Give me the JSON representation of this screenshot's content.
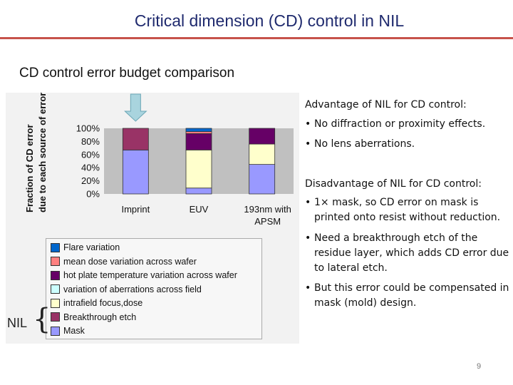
{
  "slide": {
    "title": "Critical dimension (CD) control in NIL",
    "subtitle": "CD control error budget comparison",
    "page_number": "9"
  },
  "colors": {
    "title_text": "#1f2a6e",
    "title_rule": "#c7534b",
    "bar_edge": "#333333"
  },
  "chart_data": {
    "type": "bar",
    "stacked": true,
    "percent": true,
    "ylabel": "Fraction of CD error due to each source of error",
    "yticks": [
      "0%",
      "20%",
      "40%",
      "60%",
      "80%",
      "100%"
    ],
    "ylim": [
      0,
      100
    ],
    "categories": [
      "Imprint",
      "EUV",
      "193nm with APSM"
    ],
    "highlight_arrow_category": "Imprint",
    "grid": false,
    "legend_position": "bottom",
    "series": [
      {
        "name": "Mask",
        "color": "#9999ff",
        "values": [
          67,
          9,
          45
        ]
      },
      {
        "name": "Breakthrough etch",
        "color": "#993366",
        "values": [
          33,
          0,
          0
        ]
      },
      {
        "name": "intrafield focus,dose",
        "color": "#ffffcc",
        "values": [
          0,
          58,
          31
        ]
      },
      {
        "name": "variation of aberrations across field",
        "color": "#ccffff",
        "values": [
          0,
          0,
          0
        ]
      },
      {
        "name": "hot plate temperature variation across wafer",
        "color": "#660066",
        "values": [
          0,
          25,
          24
        ]
      },
      {
        "name": "mean dose variation across wafer",
        "color": "#ff8080",
        "values": [
          0,
          3,
          0
        ]
      },
      {
        "name": "Flare variation",
        "color": "#0066cc",
        "values": [
          0,
          5,
          0
        ]
      }
    ]
  },
  "legend": {
    "items": [
      {
        "label": "Flare variation",
        "color": "#0066cc"
      },
      {
        "label": "mean dose variation across wafer",
        "color": "#ff8080"
      },
      {
        "label": "hot plate temperature variation across wafer",
        "color": "#660066"
      },
      {
        "label": "variation of aberrations across field",
        "color": "#ccffff"
      },
      {
        "label": "intrafield focus,dose",
        "color": "#ffffcc"
      },
      {
        "label": "Breakthrough etch",
        "color": "#993366"
      },
      {
        "label": "Mask",
        "color": "#9999ff"
      }
    ],
    "group_label": "NIL"
  },
  "notes": {
    "advantage_heading": "Advantage of NIL for CD control:",
    "advantages": [
      "No diffraction or proximity effects.",
      "No lens aberrations."
    ],
    "disadvantage_heading": "Disadvantage of NIL for CD control:",
    "disadvantages": [
      "1× mask, so CD error on mask is printed onto resist without reduction.",
      "Need a breakthrough etch of the residue layer, which adds CD error due to lateral etch.",
      "But this error could be compensated in mask (mold) design."
    ]
  }
}
